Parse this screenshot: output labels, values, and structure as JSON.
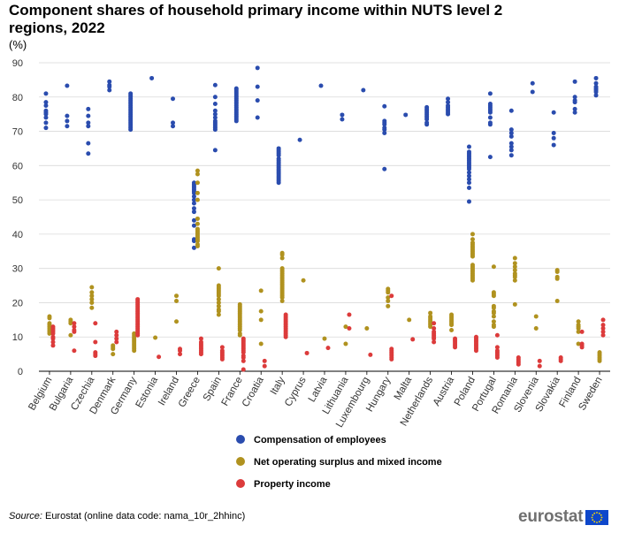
{
  "header": {
    "title": "Component shares of household primary income within NUTS level 2 regions, 2022",
    "unit": "(%)"
  },
  "footer": {
    "source_label": "Source:",
    "source_text": " Eurostat (online data code: nama_10r_2hhinc)",
    "logo_text": "eurostat"
  },
  "colors": {
    "compensation": "#2a4cae",
    "surplus": "#b0921f",
    "property": "#dc3b3b",
    "grid": "#d9d9d9",
    "axis_text": "#333333"
  },
  "chart_data": {
    "type": "scatter",
    "title": "Component shares of household primary income within NUTS level 2 regions, 2022",
    "ylabel": "(%)",
    "ylim": [
      0,
      90
    ],
    "yticks": [
      0,
      10,
      20,
      30,
      40,
      50,
      60,
      70,
      80,
      90
    ],
    "grid": true,
    "legend_position": "bottom-center",
    "categories": [
      "Belgium",
      "Bulgaria",
      "Czechia",
      "Denmark",
      "Germany",
      "Estonia",
      "Ireland",
      "Greece",
      "Spain",
      "France",
      "Croatia",
      "Italy",
      "Cyprus",
      "Latvia",
      "Lithuania",
      "Luxembourg",
      "Hungary",
      "Malta",
      "Netherlands",
      "Austria",
      "Poland",
      "Portugal",
      "Romania",
      "Slovenia",
      "Slovakia",
      "Finland",
      "Sweden"
    ],
    "series": [
      {
        "name": "Compensation of employees",
        "color": "#2a4cae",
        "values": [
          [
            81.0,
            78.5,
            77.5,
            76.0,
            75.5,
            75.0,
            74.0,
            72.5,
            71.0
          ],
          [
            83.3,
            74.5,
            73.0,
            71.5
          ],
          [
            76.5,
            74.5,
            72.5,
            71.5,
            66.5,
            63.5
          ],
          [
            84.5,
            83.5,
            83.0,
            82.0
          ],
          [
            81.0,
            80.5,
            80.0,
            79.5,
            79.0,
            78.5,
            78.0,
            77.5,
            77.0,
            76.5,
            76.0,
            75.5,
            75.0,
            74.5,
            74.0,
            73.5,
            73.0,
            72.5,
            72.0,
            71.5,
            71.0,
            70.5
          ],
          [
            85.5
          ],
          [
            79.5,
            72.5,
            71.5
          ],
          [
            55.0,
            54.5,
            54.0,
            53.5,
            53.0,
            52.5,
            52.0,
            51.0,
            50.0,
            49.0,
            47.5,
            46.5,
            44.0,
            42.5,
            38.5,
            38.0,
            36.0
          ],
          [
            83.5,
            80.0,
            78.0,
            76.0,
            75.0,
            74.0,
            73.0,
            72.5,
            72.0,
            71.5,
            71.0,
            70.5,
            64.5
          ],
          [
            82.5,
            82.0,
            81.5,
            81.0,
            80.5,
            80.0,
            79.5,
            79.0,
            78.5,
            78.0,
            77.5,
            77.0,
            76.5,
            76.0,
            75.5,
            75.0,
            74.5,
            74.0,
            73.5,
            73.0
          ],
          [
            88.5,
            83.0,
            79.0,
            74.0
          ],
          [
            65.0,
            64.5,
            64.0,
            63.5,
            63.0,
            62.0,
            61.5,
            61.0,
            60.5,
            60.0,
            59.5,
            59.0,
            58.5,
            58.0,
            57.5,
            57.0,
            56.5,
            56.0,
            55.5,
            55.0
          ],
          [
            67.5
          ],
          [
            83.3
          ],
          [
            74.8,
            73.5
          ],
          [
            82.0
          ],
          [
            77.3,
            73.0,
            72.5,
            72.0,
            71.0,
            70.5,
            69.5,
            59.0
          ],
          [
            74.8
          ],
          [
            77.0,
            76.5,
            76.0,
            75.5,
            75.0,
            74.5,
            74.0,
            73.5,
            72.5,
            72.0
          ],
          [
            79.5,
            78.5,
            77.5,
            77.0,
            76.5,
            76.0,
            75.5,
            75.0
          ],
          [
            65.5,
            64.0,
            63.5,
            63.0,
            62.5,
            62.0,
            61.5,
            61.0,
            60.5,
            60.0,
            59.5,
            59.0,
            58.0,
            57.0,
            56.0,
            55.0,
            53.5,
            49.5
          ],
          [
            81.0,
            78.0,
            77.5,
            77.0,
            76.5,
            76.0,
            75.5,
            74.0,
            72.5,
            72.0,
            62.5
          ],
          [
            76.0,
            70.5,
            69.5,
            68.5,
            66.5,
            65.5,
            64.5,
            63.0
          ],
          [
            84.0,
            81.5
          ],
          [
            75.5,
            69.5,
            68.0,
            66.0
          ],
          [
            84.5,
            80.0,
            79.0,
            78.5,
            76.5,
            75.5
          ],
          [
            85.5,
            84.0,
            83.0,
            82.5,
            82.0,
            81.5,
            80.5
          ]
        ]
      },
      {
        "name": "Net operating surplus and mixed income",
        "color": "#b0921f",
        "values": [
          [
            16.0,
            15.5,
            14.0,
            13.5,
            13.0,
            12.5,
            12.0,
            11.5,
            11.0
          ],
          [
            15.0,
            14.5,
            14.0,
            10.5
          ],
          [
            24.5,
            23.0,
            22.0,
            21.0,
            20.0,
            18.5
          ],
          [
            7.5,
            7.0,
            6.5,
            5.0
          ],
          [
            11.0,
            10.5,
            10.0,
            9.5,
            9.0,
            8.5,
            8.0,
            7.5,
            7.0,
            6.5,
            6.0
          ],
          [
            9.8
          ],
          [
            22.0,
            20.5,
            14.5
          ],
          [
            58.5,
            57.5,
            55.0,
            52.0,
            50.0,
            44.5,
            43.0,
            41.5,
            41.0,
            40.5,
            40.0,
            39.5,
            39.0,
            38.5,
            38.0,
            37.0,
            36.5
          ],
          [
            30.0,
            25.0,
            24.5,
            24.0,
            23.5,
            23.0,
            22.5,
            22.0,
            21.0,
            20.0,
            19.0,
            18.0,
            17.5,
            16.5
          ],
          [
            19.5,
            19.0,
            18.5,
            18.0,
            17.5,
            17.0,
            16.5,
            16.0,
            15.5,
            15.0,
            14.5,
            14.0,
            13.5,
            13.0,
            12.5,
            12.0,
            11.0,
            10.5
          ],
          [
            23.5,
            17.5,
            15.0,
            8.0
          ],
          [
            34.5,
            34.0,
            33.0,
            30.0,
            29.5,
            29.0,
            28.5,
            28.0,
            27.5,
            27.0,
            26.5,
            26.0,
            25.5,
            25.0,
            24.5,
            24.0,
            23.5,
            23.0,
            22.5,
            22.0,
            21.5,
            20.5
          ],
          [
            26.5
          ],
          [
            9.5
          ],
          [
            13.0,
            8.0
          ],
          [
            12.5
          ],
          [
            24.0,
            23.5,
            23.0,
            21.5,
            20.5,
            19.0
          ],
          [
            15.0
          ],
          [
            17.0,
            16.0,
            15.5,
            15.0,
            14.5,
            14.0,
            13.5,
            13.0
          ],
          [
            16.5,
            16.0,
            15.5,
            15.0,
            14.5,
            14.0,
            13.5,
            12.0
          ],
          [
            40.0,
            38.5,
            37.5,
            37.0,
            36.5,
            36.0,
            35.5,
            35.0,
            34.5,
            34.0,
            33.5,
            31.0,
            30.5,
            30.0,
            29.5,
            29.0,
            28.5,
            28.0,
            27.5,
            27.0,
            26.5
          ],
          [
            30.5,
            23.0,
            22.5,
            22.0,
            19.0,
            18.5,
            17.5,
            17.0,
            16.0,
            14.5,
            13.5,
            13.0
          ],
          [
            33.0,
            31.5,
            30.5,
            29.5,
            28.5,
            28.0,
            27.5,
            26.5,
            19.5
          ],
          [
            16.0,
            12.5
          ],
          [
            29.5,
            29.0,
            27.5,
            27.0,
            20.5
          ],
          [
            14.5,
            13.5,
            13.0,
            12.5,
            11.5,
            8.0
          ],
          [
            5.5,
            5.0,
            4.5,
            4.0,
            3.5,
            3.0
          ]
        ]
      },
      {
        "name": "Property income",
        "color": "#dc3b3b",
        "values": [
          [
            13.0,
            12.5,
            12.0,
            11.5,
            11.0,
            10.0,
            9.5,
            8.5,
            7.5
          ],
          [
            14.0,
            13.0,
            12.0,
            11.5,
            6.0
          ],
          [
            14.0,
            8.5,
            5.5,
            5.0,
            4.5
          ],
          [
            11.5,
            10.5,
            9.5,
            8.5
          ],
          [
            21.0,
            20.5,
            20.0,
            19.5,
            19.0,
            18.5,
            18.0,
            17.5,
            17.0,
            16.5,
            16.0,
            15.5,
            15.0,
            14.5,
            14.0,
            13.5,
            13.0,
            12.5,
            12.0,
            11.5,
            11.0,
            10.5
          ],
          [
            4.2
          ],
          [
            6.5,
            6.0,
            5.0
          ],
          [
            9.5,
            8.5,
            8.0,
            7.5,
            7.0,
            6.5,
            6.0,
            5.5,
            5.0
          ],
          [
            7.0,
            6.0,
            5.5,
            5.0,
            4.5,
            4.0,
            3.5
          ],
          [
            9.5,
            9.0,
            8.5,
            8.0,
            7.5,
            7.0,
            6.5,
            6.0,
            5.5,
            4.5,
            4.0,
            3.0,
            0.5
          ],
          [
            3.0,
            1.5
          ],
          [
            16.5,
            16.0,
            15.5,
            15.0,
            14.5,
            14.0,
            13.5,
            13.0,
            12.5,
            12.0,
            11.5,
            11.0,
            10.5,
            10.0
          ],
          [
            5.3
          ],
          [
            6.8
          ],
          [
            16.5,
            12.5
          ],
          [
            4.8
          ],
          [
            22.0,
            6.5,
            6.0,
            5.5,
            5.0,
            4.5,
            4.0,
            3.5
          ],
          [
            9.3
          ],
          [
            14.0,
            12.5,
            11.5,
            11.0,
            10.5,
            10.0,
            9.5,
            8.5
          ],
          [
            9.5,
            9.0,
            8.5,
            8.0,
            7.5,
            7.0
          ],
          [
            10.0,
            9.5,
            9.0,
            8.5,
            8.0,
            7.5,
            7.0,
            6.5,
            6.0
          ],
          [
            10.5,
            7.0,
            6.0,
            5.5,
            5.0,
            4.5,
            4.0
          ],
          [
            4.0,
            3.5,
            3.0,
            2.5,
            2.0
          ],
          [
            3.0,
            1.5
          ],
          [
            4.0,
            3.5,
            3.0
          ],
          [
            8.0,
            7.5,
            7.0,
            11.5
          ],
          [
            15.0,
            13.5,
            12.5,
            11.5,
            10.5
          ]
        ]
      }
    ]
  }
}
